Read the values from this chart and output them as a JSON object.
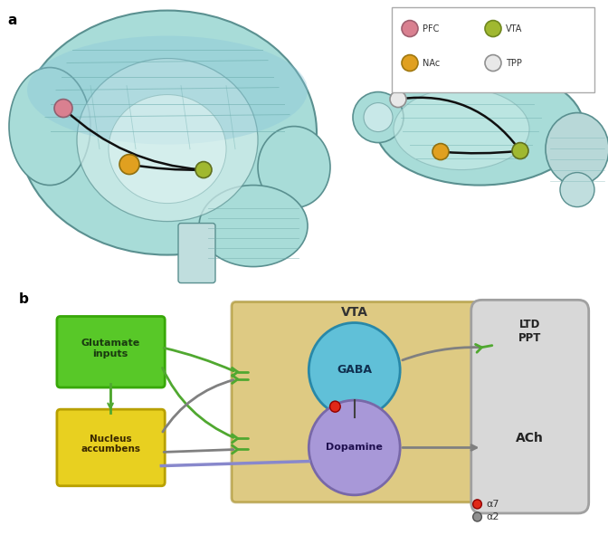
{
  "fig_width": 6.72,
  "fig_height": 5.91,
  "bg_color": "#ffffff",
  "panel_a_label": "a",
  "panel_b_label": "b",
  "brain_color": "#a8dcd8",
  "brain_edge": "#5a9090",
  "brain_inner_color": "#c8ecec",
  "brain_gyri_color": "#70a8a8",
  "pfc_color": "#d98090",
  "vta_color": "#a0b830",
  "nac_color": "#e0a020",
  "tpp_color": "#e8e8e8",
  "tpp_edge": "#909090",
  "connection_color": "#202020",
  "vta_box_color": "#c8a830",
  "vta_box_edge": "#a08820",
  "gaba_color": "#60c0d8",
  "gaba_edge": "#2888a8",
  "dopamine_color": "#a898d8",
  "dopamine_edge": "#7868a8",
  "glut_color": "#58c828",
  "glut_edge": "#38a808",
  "nac_box_color": "#e8d020",
  "nac_box_edge": "#b8a000",
  "ach_box_color": "#d8d8d8",
  "ach_box_edge": "#a0a0a0",
  "arrow_grey": "#808080",
  "arrow_green": "#60a840",
  "synapse_color": "#50a830",
  "red_dot": "#e02818",
  "grey_dot": "#909090",
  "alpha7": "α7",
  "alpha2": "α2",
  "legend_labels": [
    "PFC",
    "VTA",
    "NAc",
    "TPP"
  ],
  "legend_colors": [
    "#d98090",
    "#a0b830",
    "#e0a020",
    "#e8e8e8"
  ],
  "legend_edges": [
    "#a06070",
    "#708820",
    "#a07810",
    "#909090"
  ]
}
